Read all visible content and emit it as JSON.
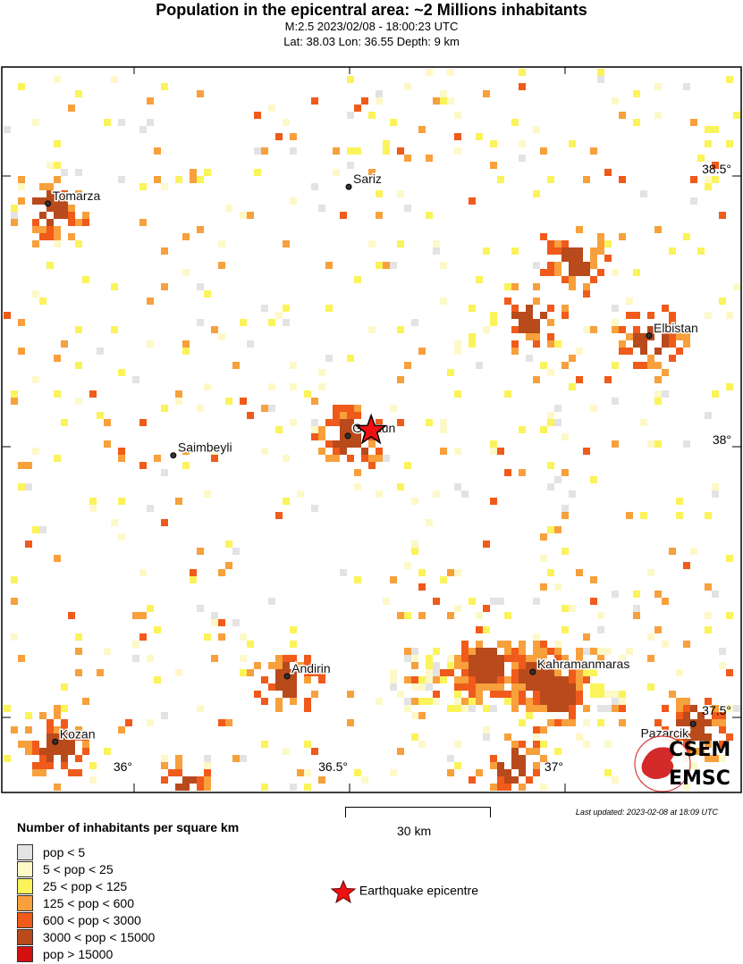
{
  "header": {
    "title": "Population in the epicentral area: ~2 Millions inhabitants",
    "line1": "M:2.5 2023/02/08 - 18:00:23 UTC",
    "line2": "Lat: 38.03 Lon: 36.55 Depth: 9 km"
  },
  "map": {
    "lon_ticks": [
      {
        "value": 36,
        "label": "36°"
      },
      {
        "value": 36.5,
        "label": "36.5°"
      },
      {
        "value": 37,
        "label": "37°"
      }
    ],
    "lat_ticks": [
      {
        "value": 38.5,
        "label": "38.5°"
      },
      {
        "value": 38,
        "label": "38°"
      },
      {
        "value": 37.5,
        "label": "37.5°"
      }
    ],
    "epicentre": {
      "lat": 38.03,
      "lon": 36.55,
      "color": "#ee1111"
    },
    "cities": [
      {
        "name": "Tomarza",
        "lon": 35.8,
        "lat": 38.449
      },
      {
        "name": "Sariz",
        "lon": 36.498,
        "lat": 38.48
      },
      {
        "name": "Elbistan",
        "lon": 37.195,
        "lat": 38.205
      },
      {
        "name": "Goksun",
        "lon": 36.496,
        "lat": 38.02
      },
      {
        "name": "Saimbeyli",
        "lon": 36.091,
        "lat": 37.984
      },
      {
        "name": "Andirin",
        "lon": 36.355,
        "lat": 37.576
      },
      {
        "name": "Kahramanmaras",
        "lon": 36.925,
        "lat": 37.584
      },
      {
        "name": "Kozan",
        "lon": 35.817,
        "lat": 37.455
      },
      {
        "name": "Pazarcik",
        "lon": 37.297,
        "lat": 37.488
      }
    ],
    "logo": {
      "top": "CSEM",
      "bottom": "EMSC",
      "color": "#d42a2a"
    }
  },
  "legend": {
    "title": "Number of inhabitants per square km",
    "classes": [
      {
        "label": "pop < 5",
        "color": "#e3e3e3"
      },
      {
        "label": "5 < pop < 25",
        "color": "#fdf8c8"
      },
      {
        "label": "25 < pop < 125",
        "color": "#fbf35a"
      },
      {
        "label": "125 < pop < 600",
        "color": "#f7a03c"
      },
      {
        "label": "600 < pop < 3000",
        "color": "#f05a1a"
      },
      {
        "label": "3000 < pop < 15000",
        "color": "#b84a1c"
      },
      {
        "label": "pop > 15000",
        "color": "#d41010"
      }
    ],
    "scale_label": "30 km",
    "epicentre_label": "Earthquake epicentre",
    "updated": "Last updated: 2023-02-08 at 18:09 UTC"
  }
}
